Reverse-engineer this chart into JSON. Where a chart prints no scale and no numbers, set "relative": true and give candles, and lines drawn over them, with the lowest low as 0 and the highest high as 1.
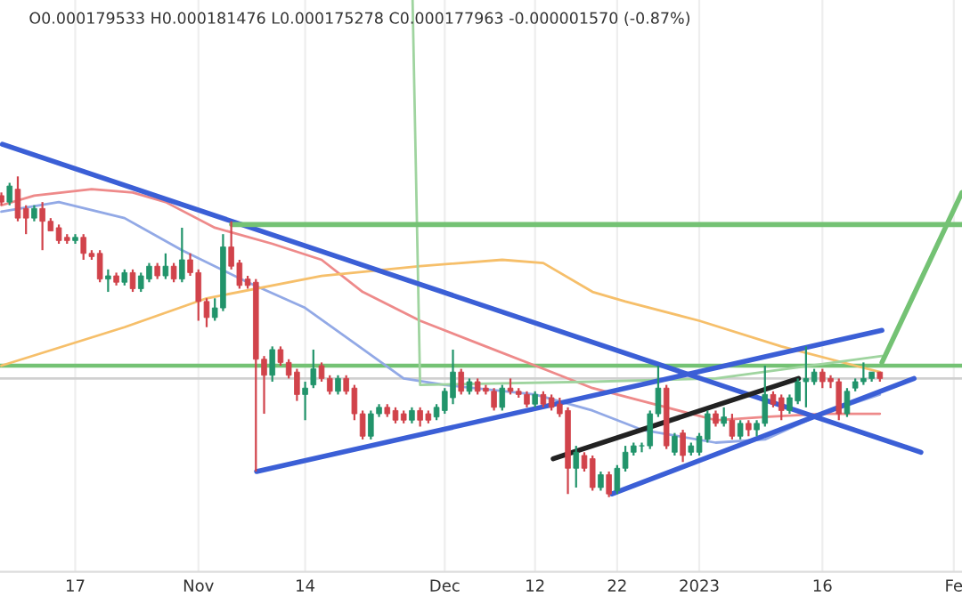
{
  "chart_data": {
    "type": "candlestick",
    "title": "O0.000179533 H0.000181476 L0.000175278 C0.000177963 -0.000001570 (-0.87%)",
    "relative": true,
    "x": [
      "2022-10-08",
      "2022-10-09",
      "2022-10-10",
      "2022-10-11",
      "2022-10-12",
      "2022-10-13",
      "2022-10-14",
      "2022-10-15",
      "2022-10-16",
      "2022-10-17",
      "2022-10-18",
      "2022-10-19",
      "2022-10-20",
      "2022-10-21",
      "2022-10-22",
      "2022-10-23",
      "2022-10-24",
      "2022-10-25",
      "2022-10-26",
      "2022-10-27",
      "2022-10-28",
      "2022-10-29",
      "2022-10-30",
      "2022-10-31",
      "2022-11-01",
      "2022-11-02",
      "2022-11-03",
      "2022-11-04",
      "2022-11-05",
      "2022-11-06",
      "2022-11-07",
      "2022-11-08",
      "2022-11-09",
      "2022-11-10",
      "2022-11-11",
      "2022-11-12",
      "2022-11-13",
      "2022-11-14",
      "2022-11-15",
      "2022-11-16",
      "2022-11-17",
      "2022-11-18",
      "2022-11-19",
      "2022-11-20",
      "2022-11-21",
      "2022-11-22",
      "2022-11-23",
      "2022-11-24",
      "2022-11-25",
      "2022-11-26",
      "2022-11-27",
      "2022-11-28",
      "2022-11-29",
      "2022-11-30",
      "2022-12-01",
      "2022-12-02",
      "2022-12-03",
      "2022-12-04",
      "2022-12-05",
      "2022-12-06",
      "2022-12-07",
      "2022-12-08",
      "2022-12-09",
      "2022-12-10",
      "2022-12-11",
      "2022-12-12",
      "2022-12-13",
      "2022-12-14",
      "2022-12-15",
      "2022-12-16",
      "2022-12-17",
      "2022-12-18",
      "2022-12-19",
      "2022-12-20",
      "2022-12-21",
      "2022-12-22",
      "2022-12-23",
      "2022-12-24",
      "2022-12-25",
      "2022-12-26",
      "2022-12-27",
      "2022-12-28",
      "2022-12-29",
      "2022-12-30",
      "2022-12-31",
      "2023-01-01",
      "2023-01-02",
      "2023-01-03",
      "2023-01-04",
      "2023-01-05",
      "2023-01-06",
      "2023-01-07",
      "2023-01-08",
      "2023-01-09",
      "2023-01-10",
      "2023-01-11",
      "2023-01-12",
      "2023-01-13",
      "2023-01-14",
      "2023-01-15",
      "2023-01-16",
      "2023-01-17",
      "2023-01-18",
      "2023-01-19",
      "2023-01-20",
      "2023-01-21",
      "2023-01-22",
      "2023-01-23"
    ],
    "ohlc": [
      [
        0.94,
        0.95,
        0.91,
        0.92
      ],
      [
        0.92,
        0.98,
        0.91,
        0.97
      ],
      [
        0.96,
        1.0,
        0.86,
        0.87
      ],
      [
        0.9,
        0.91,
        0.82,
        0.87
      ],
      [
        0.87,
        0.91,
        0.86,
        0.9
      ],
      [
        0.9,
        0.92,
        0.77,
        0.86
      ],
      [
        0.86,
        0.87,
        0.83,
        0.83
      ],
      [
        0.84,
        0.85,
        0.79,
        0.8
      ],
      [
        0.81,
        0.82,
        0.79,
        0.8
      ],
      [
        0.8,
        0.82,
        0.79,
        0.81
      ],
      [
        0.81,
        0.82,
        0.74,
        0.76
      ],
      [
        0.76,
        0.77,
        0.74,
        0.75
      ],
      [
        0.76,
        0.77,
        0.67,
        0.68
      ],
      [
        0.68,
        0.71,
        0.64,
        0.69
      ],
      [
        0.69,
        0.7,
        0.66,
        0.67
      ],
      [
        0.67,
        0.71,
        0.66,
        0.7
      ],
      [
        0.7,
        0.71,
        0.64,
        0.65
      ],
      [
        0.65,
        0.7,
        0.64,
        0.69
      ],
      [
        0.68,
        0.73,
        0.67,
        0.72
      ],
      [
        0.72,
        0.73,
        0.68,
        0.69
      ],
      [
        0.69,
        0.76,
        0.68,
        0.72
      ],
      [
        0.72,
        0.73,
        0.67,
        0.68
      ],
      [
        0.68,
        0.84,
        0.67,
        0.74
      ],
      [
        0.74,
        0.76,
        0.69,
        0.7
      ],
      [
        0.7,
        0.71,
        0.55,
        0.61
      ],
      [
        0.61,
        0.62,
        0.53,
        0.56
      ],
      [
        0.56,
        0.62,
        0.55,
        0.59
      ],
      [
        0.59,
        0.82,
        0.58,
        0.78
      ],
      [
        0.78,
        0.86,
        0.71,
        0.72
      ],
      [
        0.73,
        0.74,
        0.65,
        0.66
      ],
      [
        0.68,
        0.69,
        0.65,
        0.66
      ],
      [
        0.67,
        0.68,
        0.08,
        0.43
      ],
      [
        0.43,
        0.44,
        0.26,
        0.38
      ],
      [
        0.38,
        0.47,
        0.36,
        0.46
      ],
      [
        0.46,
        0.47,
        0.41,
        0.42
      ],
      [
        0.42,
        0.43,
        0.37,
        0.38
      ],
      [
        0.39,
        0.4,
        0.3,
        0.32
      ],
      [
        0.32,
        0.36,
        0.24,
        0.34
      ],
      [
        0.35,
        0.46,
        0.34,
        0.4
      ],
      [
        0.41,
        0.42,
        0.36,
        0.37
      ],
      [
        0.37,
        0.38,
        0.32,
        0.33
      ],
      [
        0.33,
        0.38,
        0.32,
        0.37
      ],
      [
        0.37,
        0.38,
        0.32,
        0.33
      ],
      [
        0.34,
        0.35,
        0.24,
        0.26
      ],
      [
        0.26,
        0.27,
        0.18,
        0.19
      ],
      [
        0.19,
        0.27,
        0.18,
        0.26
      ],
      [
        0.26,
        0.29,
        0.25,
        0.28
      ],
      [
        0.28,
        0.29,
        0.25,
        0.26
      ],
      [
        0.27,
        0.28,
        0.23,
        0.24
      ],
      [
        0.26,
        0.27,
        0.23,
        0.24
      ],
      [
        0.24,
        0.28,
        0.23,
        0.27
      ],
      [
        0.27,
        0.28,
        0.22,
        0.24
      ],
      [
        0.26,
        0.27,
        0.23,
        0.24
      ],
      [
        0.25,
        0.29,
        0.24,
        0.28
      ],
      [
        0.27,
        0.34,
        0.26,
        0.33
      ],
      [
        0.31,
        0.46,
        0.29,
        0.39
      ],
      [
        0.39,
        0.4,
        0.32,
        0.33
      ],
      [
        0.33,
        0.37,
        0.32,
        0.36
      ],
      [
        0.36,
        0.37,
        0.32,
        0.33
      ],
      [
        0.34,
        0.35,
        0.32,
        0.33
      ],
      [
        0.33,
        0.34,
        0.27,
        0.28
      ],
      [
        0.28,
        0.35,
        0.27,
        0.34
      ],
      [
        0.34,
        0.37,
        0.32,
        0.33
      ],
      [
        0.33,
        0.34,
        0.31,
        0.32
      ],
      [
        0.32,
        0.33,
        0.28,
        0.29
      ],
      [
        0.29,
        0.33,
        0.28,
        0.32
      ],
      [
        0.32,
        0.33,
        0.28,
        0.29
      ],
      [
        0.31,
        0.32,
        0.27,
        0.28
      ],
      [
        0.29,
        0.31,
        0.25,
        0.26
      ],
      [
        0.27,
        0.28,
        0.01,
        0.09
      ],
      [
        0.09,
        0.16,
        0.03,
        0.14
      ],
      [
        0.13,
        0.14,
        0.08,
        0.09
      ],
      [
        0.12,
        0.13,
        0.02,
        0.03
      ],
      [
        0.03,
        0.08,
        0.02,
        0.07
      ],
      [
        0.07,
        0.08,
        0.0,
        0.01
      ],
      [
        0.02,
        0.1,
        0.01,
        0.09
      ],
      [
        0.09,
        0.16,
        0.08,
        0.14
      ],
      [
        0.14,
        0.17,
        0.13,
        0.16
      ],
      [
        0.16,
        0.17,
        0.14,
        0.16
      ],
      [
        0.16,
        0.27,
        0.15,
        0.26
      ],
      [
        0.26,
        0.41,
        0.25,
        0.34
      ],
      [
        0.34,
        0.35,
        0.15,
        0.16
      ],
      [
        0.14,
        0.2,
        0.13,
        0.19
      ],
      [
        0.2,
        0.21,
        0.11,
        0.13
      ],
      [
        0.14,
        0.17,
        0.13,
        0.16
      ],
      [
        0.14,
        0.2,
        0.13,
        0.19
      ],
      [
        0.18,
        0.27,
        0.17,
        0.26
      ],
      [
        0.26,
        0.27,
        0.22,
        0.23
      ],
      [
        0.23,
        0.28,
        0.22,
        0.25
      ],
      [
        0.24,
        0.26,
        0.18,
        0.19
      ],
      [
        0.19,
        0.24,
        0.18,
        0.23
      ],
      [
        0.23,
        0.24,
        0.19,
        0.21
      ],
      [
        0.21,
        0.24,
        0.19,
        0.23
      ],
      [
        0.23,
        0.41,
        0.22,
        0.32
      ],
      [
        0.32,
        0.33,
        0.28,
        0.29
      ],
      [
        0.31,
        0.32,
        0.24,
        0.27
      ],
      [
        0.27,
        0.32,
        0.26,
        0.31
      ],
      [
        0.3,
        0.37,
        0.29,
        0.36
      ],
      [
        0.36,
        0.47,
        0.28,
        0.37
      ],
      [
        0.36,
        0.4,
        0.35,
        0.39
      ],
      [
        0.39,
        0.4,
        0.34,
        0.36
      ],
      [
        0.37,
        0.38,
        0.34,
        0.36
      ],
      [
        0.36,
        0.37,
        0.24,
        0.26
      ],
      [
        0.26,
        0.34,
        0.25,
        0.33
      ],
      [
        0.34,
        0.37,
        0.33,
        0.36
      ],
      [
        0.36,
        0.42,
        0.35,
        0.37
      ],
      [
        0.37,
        0.39,
        0.36,
        0.39
      ],
      [
        0.39,
        0.39,
        0.36,
        0.37
      ]
    ],
    "series": [
      {
        "type": "line",
        "color": "#ee8a8a",
        "x": [
          "2022-10-08",
          "2022-10-12",
          "2022-10-19",
          "2022-10-24",
          "2022-10-28",
          "2022-11-03",
          "2022-11-10",
          "2022-11-16",
          "2022-11-21",
          "2022-11-28",
          "2022-12-06",
          "2022-12-13",
          "2022-12-19",
          "2022-12-25",
          "2023-01-03",
          "2023-01-09",
          "2023-01-16",
          "2023-01-23"
        ],
        "values": [
          0.91,
          0.94,
          0.96,
          0.95,
          0.92,
          0.84,
          0.79,
          0.74,
          0.64,
          0.55,
          0.47,
          0.4,
          0.34,
          0.3,
          0.24,
          0.25,
          0.26,
          0.26
        ]
      },
      {
        "type": "line",
        "color": "#92a9e6",
        "x": [
          "2022-10-08",
          "2022-10-15",
          "2022-10-23",
          "2022-10-30",
          "2022-11-07",
          "2022-11-14",
          "2022-11-20",
          "2022-11-26",
          "2022-12-01",
          "2022-12-12",
          "2022-12-19",
          "2022-12-25",
          "2023-01-03",
          "2023-01-09",
          "2023-01-16",
          "2023-01-23"
        ],
        "values": [
          0.89,
          0.92,
          0.87,
          0.77,
          0.67,
          0.59,
          0.48,
          0.37,
          0.35,
          0.32,
          0.27,
          0.21,
          0.17,
          0.18,
          0.26,
          0.32
        ]
      },
      {
        "type": "line",
        "color": "#f6bf6a",
        "x": [
          "2022-10-08",
          "2022-10-23",
          "2022-11-02",
          "2022-11-16",
          "2022-11-28",
          "2022-12-08",
          "2022-12-13",
          "2022-12-19",
          "2022-12-23",
          "2023-01-01",
          "2023-01-11",
          "2023-01-20",
          "2023-01-23"
        ],
        "values": [
          0.41,
          0.53,
          0.62,
          0.69,
          0.72,
          0.74,
          0.73,
          0.64,
          0.61,
          0.55,
          0.47,
          0.41,
          0.39
        ]
      },
      {
        "type": "line",
        "color": "#9fd49f",
        "x": [
          "2022-11-27T02:00",
          "2022-11-28",
          "2022-12-19",
          "2023-01-03",
          "2023-01-23T06:00"
        ],
        "values": [
          1.55,
          0.35,
          0.36,
          0.37,
          0.44
        ]
      },
      {
        "type": "line",
        "color": "#3b5fd6",
        "x": [
          "2022-10-08T03:00",
          "2023-01-28"
        ],
        "values": [
          1.1,
          0.14
        ]
      },
      {
        "type": "line",
        "color": "#3b5fd6",
        "x": [
          "2022-11-08T02:00",
          "2023-01-23T06:00"
        ],
        "values": [
          0.08,
          0.52
        ]
      },
      {
        "type": "line",
        "color": "#3b5fd6",
        "x": [
          "2022-12-21T09:00",
          "2023-01-27T04:00"
        ],
        "values": [
          0.01,
          0.37
        ]
      },
      {
        "type": "line",
        "color": "#222222",
        "x": [
          "2022-12-14T05:00",
          "2023-01-13T02:00"
        ],
        "values": [
          0.12,
          0.37
        ]
      },
      {
        "type": "line",
        "color": "#74c274",
        "x": [
          "2022-11-05T01:00",
          "2023-02-02"
        ],
        "values": [
          0.85,
          0.85
        ]
      },
      {
        "type": "line",
        "color": "#74c274",
        "x": [
          "2023-01-23T06:00",
          "2023-02-02"
        ],
        "values": [
          0.42,
          0.95
        ]
      }
    ],
    "ref_lines": [
      {
        "axis": "y",
        "value": 0.41,
        "color": "#74c274"
      },
      {
        "axis": "y",
        "value": 0.37,
        "color": "#d0d0d0"
      }
    ],
    "xlim": [
      "2022-10-07T20:00",
      "2023-02-02"
    ],
    "xticks": [
      {
        "value": "2022-10-17",
        "label": "17"
      },
      {
        "value": "2022-11-01",
        "label": "Nov"
      },
      {
        "value": "2022-11-14",
        "label": "14"
      },
      {
        "value": "2022-12-01",
        "label": "Dec"
      },
      {
        "value": "2022-12-12",
        "label": "12"
      },
      {
        "value": "2022-12-22",
        "label": "22"
      },
      {
        "value": "2023-01-01",
        "label": "2023"
      },
      {
        "value": "2023-01-16",
        "label": "16"
      },
      {
        "value": "2023-02-01",
        "label": "Fe"
      }
    ],
    "tick_labels": "x",
    "grid": "x",
    "legend": false
  }
}
